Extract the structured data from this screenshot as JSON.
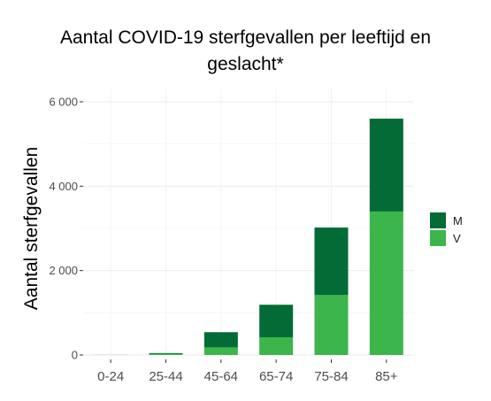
{
  "chart_data": {
    "type": "bar",
    "stacked": true,
    "title_lines": [
      "Aantal COVID-19 sterfgevallen per leeftijd en",
      "geslacht*"
    ],
    "xlabel": "",
    "ylabel": "Aantal sterfgevallen",
    "categories": [
      "0-24",
      "25-44",
      "45-64",
      "65-74",
      "75-84",
      "85+"
    ],
    "series": [
      {
        "name": "V",
        "color": "#3cb54a",
        "values": [
          1,
          25,
          180,
          420,
          1420,
          3400
        ]
      },
      {
        "name": "M",
        "color": "#036b36",
        "values": [
          1,
          20,
          360,
          770,
          1600,
          2200
        ]
      }
    ],
    "ylim": [
      0,
      6000
    ],
    "yticks": [
      0,
      2000,
      4000,
      6000
    ],
    "ytick_labels": [
      "0",
      "2 000",
      "4 000",
      "6 000"
    ],
    "grid": true,
    "legend": {
      "placement": "right",
      "order": [
        "M",
        "V"
      ]
    }
  }
}
